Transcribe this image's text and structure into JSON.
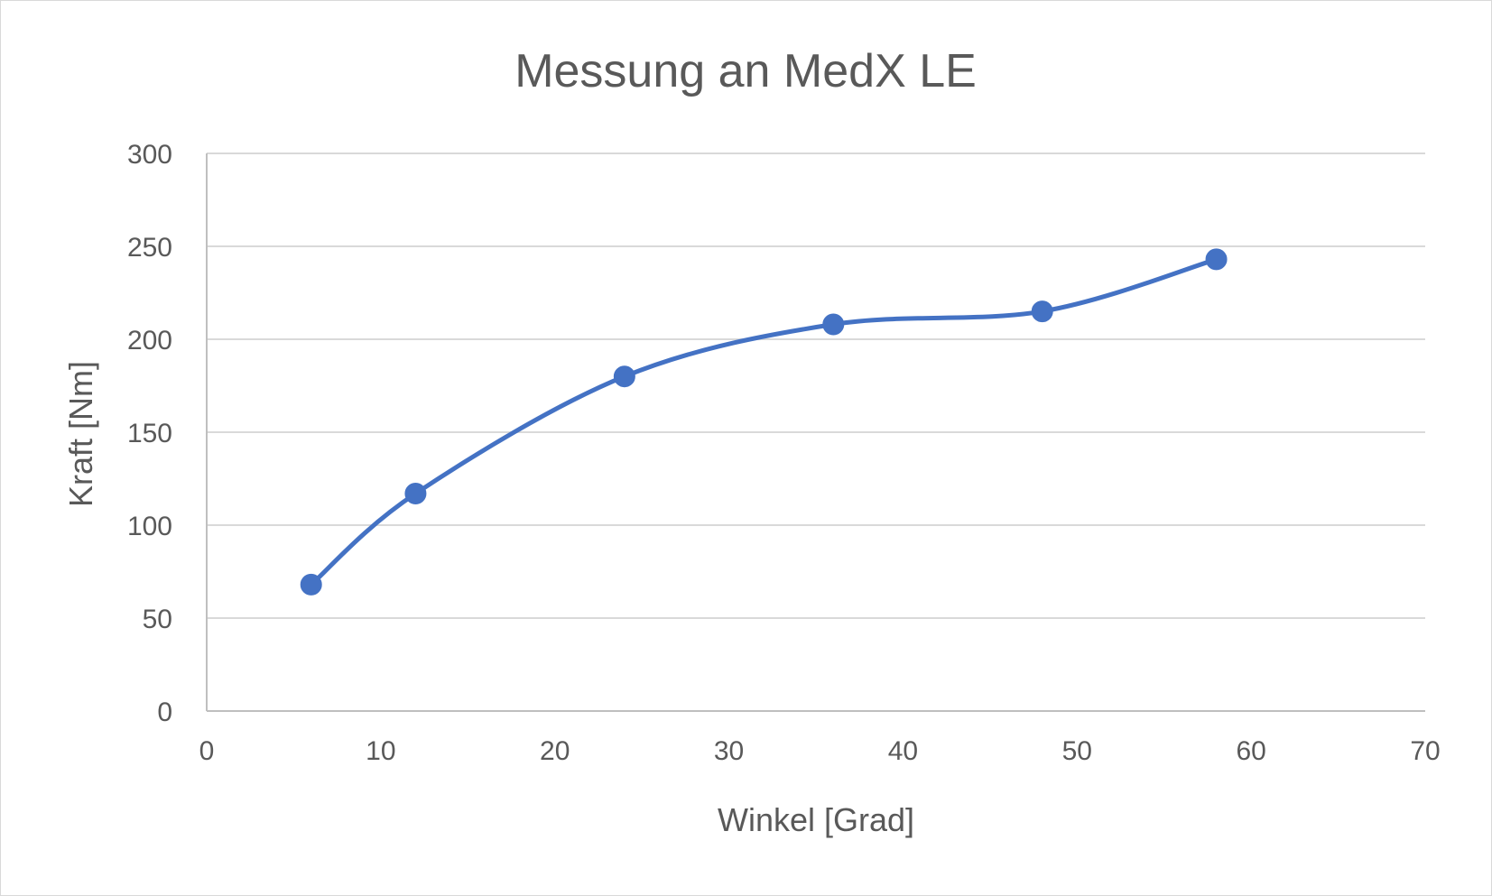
{
  "chart_data": {
    "type": "scatter",
    "title": "Messung an MedX LE",
    "xlabel": "Winkel [Grad]",
    "ylabel": "Kraft [Nm]",
    "xlim": [
      0,
      70
    ],
    "ylim": [
      0,
      300
    ],
    "x_ticks": [
      "0",
      "10",
      "20",
      "30",
      "40",
      "50",
      "60",
      "70"
    ],
    "y_ticks": [
      "0",
      "50",
      "100",
      "150",
      "200",
      "250",
      "300"
    ],
    "grid": "horizontal",
    "line_style": "smooth",
    "series": [
      {
        "color": "#4472C4",
        "points": [
          {
            "x": 6,
            "y": 68
          },
          {
            "x": 12,
            "y": 117
          },
          {
            "x": 24,
            "y": 180
          },
          {
            "x": 36,
            "y": 208
          },
          {
            "x": 48,
            "y": 215
          },
          {
            "x": 58,
            "y": 243
          }
        ]
      }
    ]
  }
}
